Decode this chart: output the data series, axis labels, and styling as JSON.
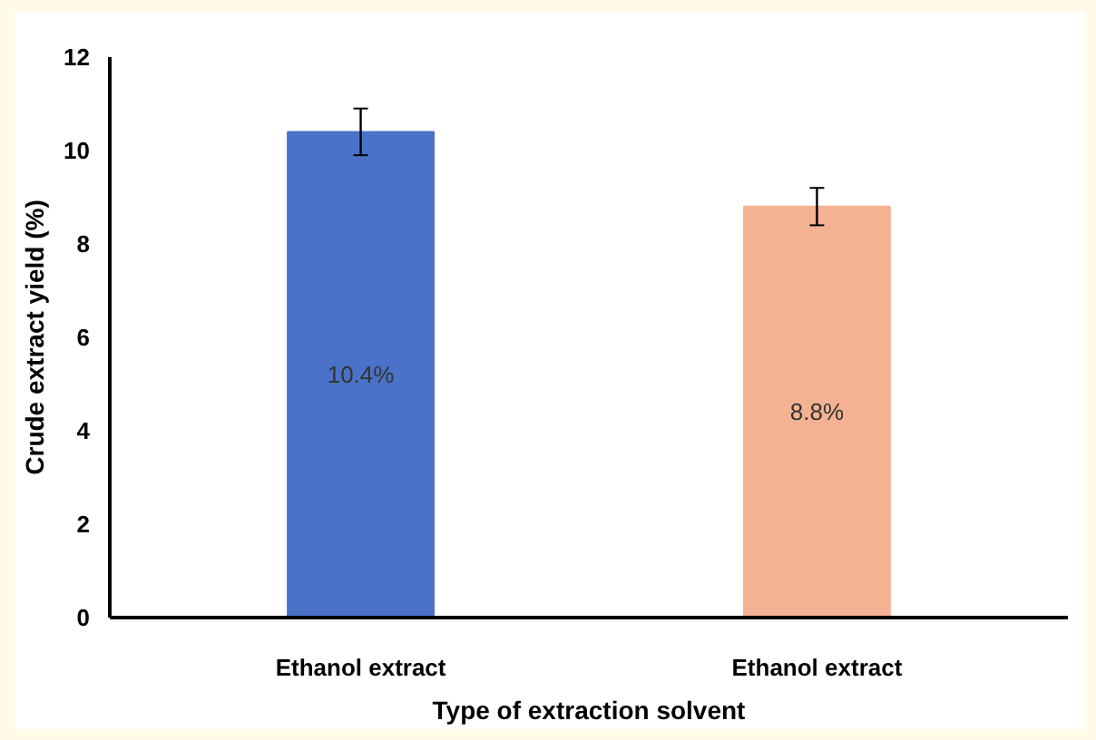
{
  "chart_data": {
    "type": "bar",
    "xlabel": "Type of extraction solvent",
    "ylabel": "Crude extract yield (%)",
    "categories": [
      "Ethanol extract",
      "Ethanol extract"
    ],
    "values": [
      10.4,
      8.8
    ],
    "colors": [
      "#4a72c8",
      "#f4b293"
    ],
    "errors": [
      0.5,
      0.4
    ],
    "value_labels": [
      "10.4%",
      "8.8%"
    ],
    "ylim": [
      0,
      12
    ],
    "yticks": [
      0,
      2,
      4,
      6,
      8,
      10,
      12
    ],
    "grid": false
  }
}
